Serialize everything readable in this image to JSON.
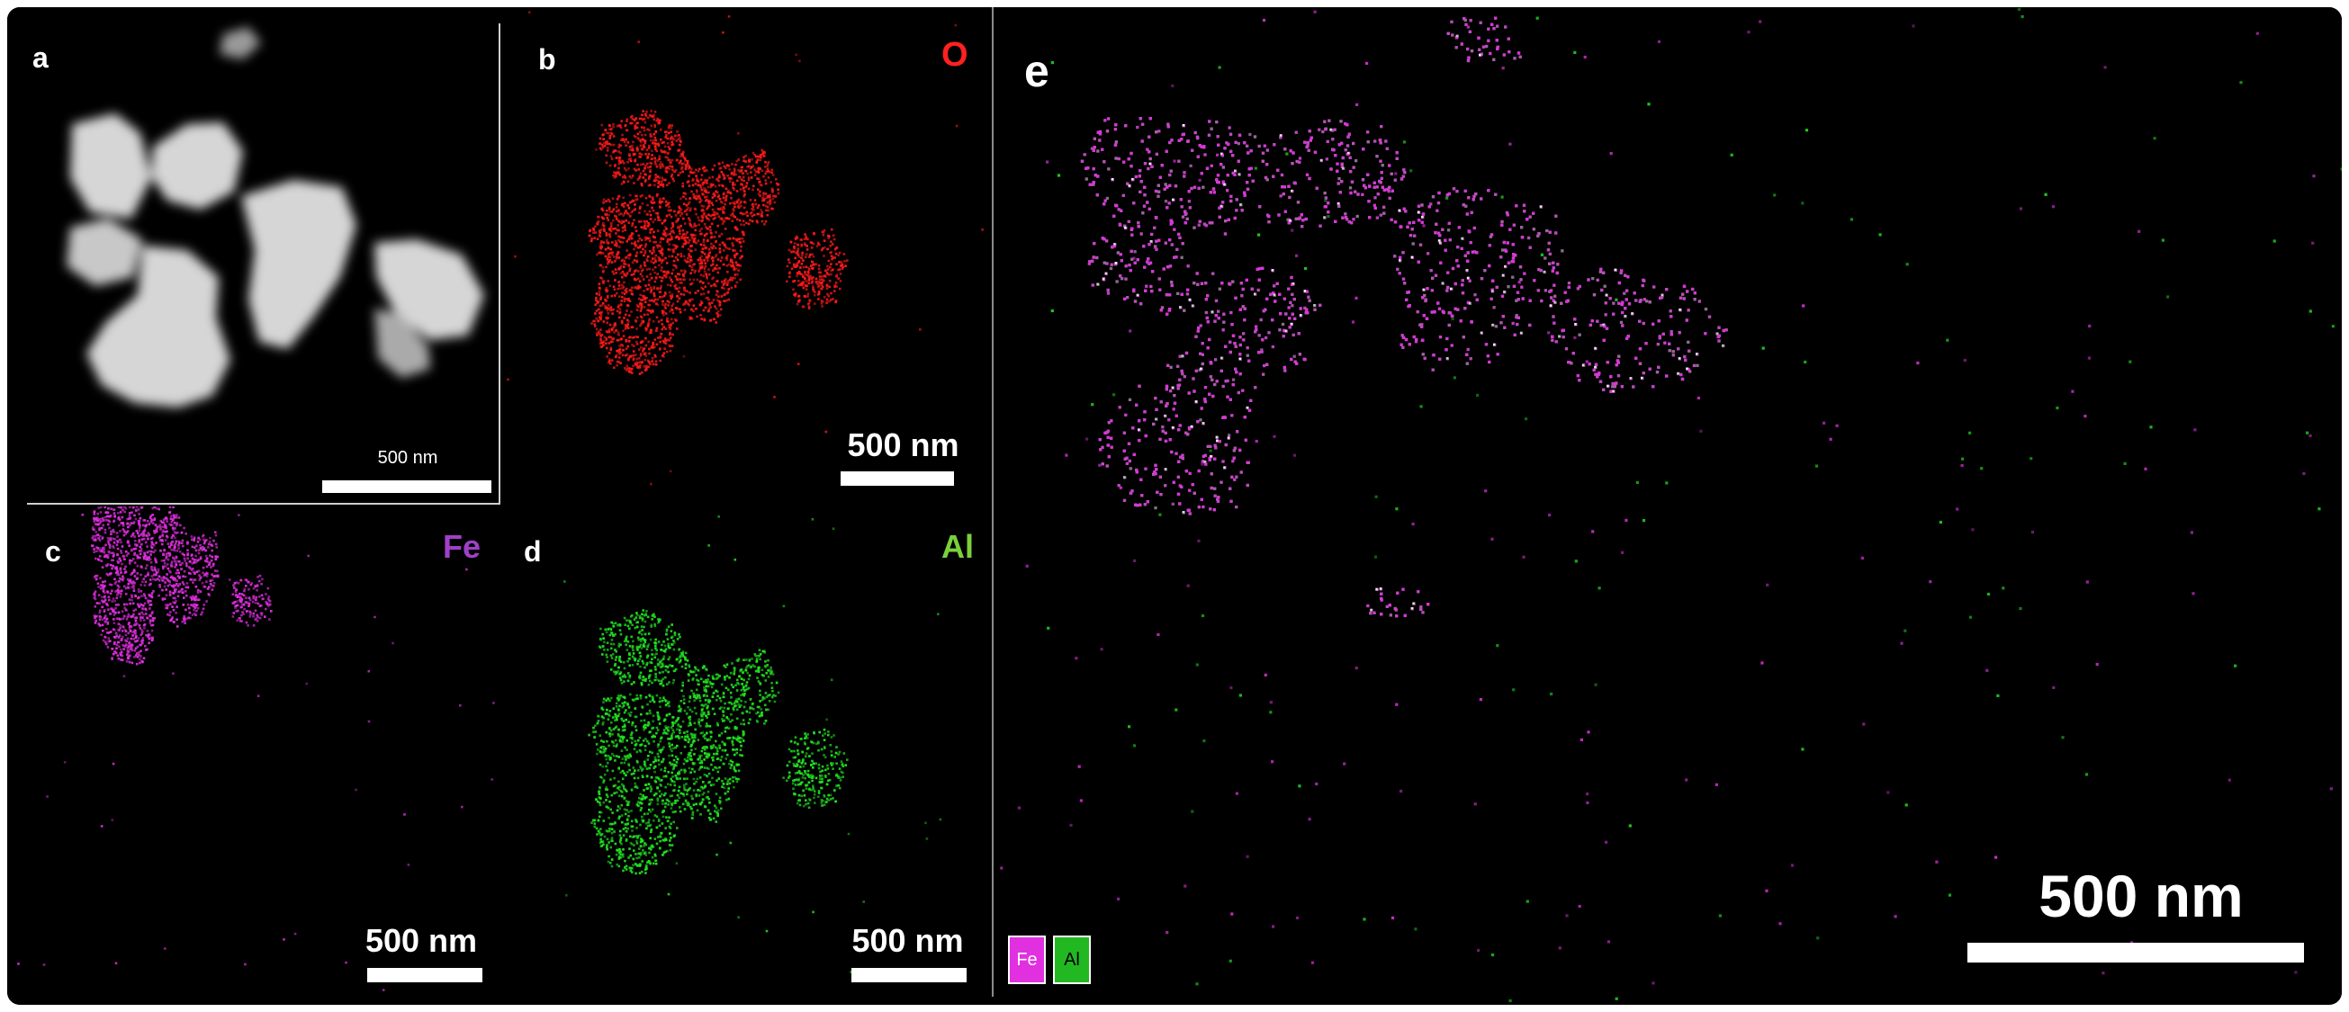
{
  "panels": {
    "a": {
      "label": "a",
      "scale_bar": "500 nm"
    },
    "b": {
      "label": "b",
      "element": "O",
      "scale_bar": "500 nm"
    },
    "c": {
      "label": "c",
      "element": "Fe",
      "scale_bar": "500 nm"
    },
    "d": {
      "label": "d",
      "element": "Al",
      "scale_bar": "500 nm"
    },
    "e": {
      "label": "e",
      "scale_bar": "500 nm",
      "legend": [
        "Fe",
        "Al"
      ]
    }
  },
  "colors": {
    "O": "#ff1a1a",
    "Fe": "#e030e0",
    "Al": "#22e022",
    "haadf": "#d8d8d8",
    "fe_label": "#a040c8",
    "al_label": "#7ad03c",
    "o_label": "#ff2020"
  }
}
